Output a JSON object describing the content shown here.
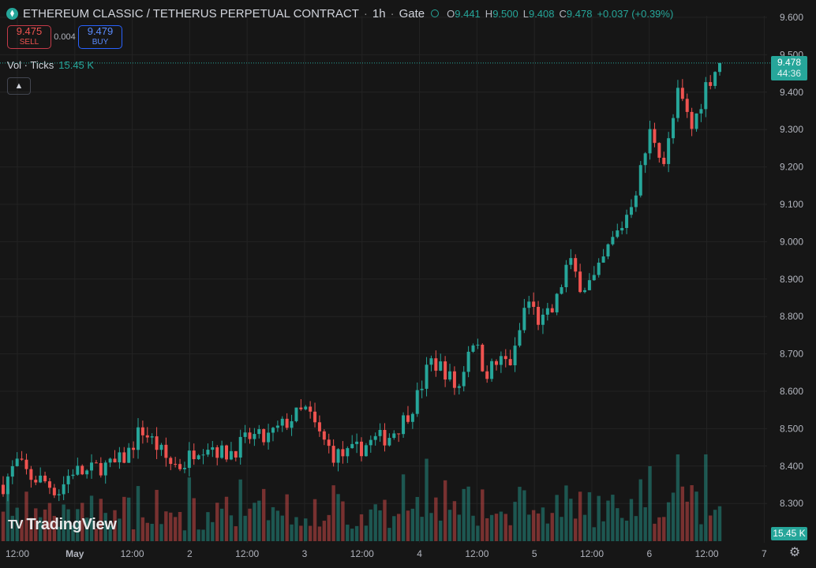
{
  "header": {
    "symbol": "ETHEREUM CLASSIC / TETHERUS PERPETUAL CONTRACT",
    "interval": "1h",
    "exchange": "Gate",
    "ohlc": {
      "o_label": "O",
      "o": "9.441",
      "h_label": "H",
      "h": "9.500",
      "l_label": "L",
      "l": "9.408",
      "c_label": "C",
      "c": "9.478",
      "change": "+0.037 (+0.39%)"
    }
  },
  "trade": {
    "sell_price": "9.475",
    "sell_label": "SELL",
    "spread": "0.004",
    "buy_price": "9.479",
    "buy_label": "BUY"
  },
  "volume_legend": {
    "label": "Vol · Ticks",
    "value": "15.45 K"
  },
  "collapse_icon": "chevron-up-icon",
  "branding": {
    "logo_text": "TradingView",
    "logo_mark": "TV"
  },
  "price_badge": {
    "price": "9.478",
    "countdown": "44:36"
  },
  "volume_badge": "15.45 K",
  "settings_icon": "gear-icon",
  "colors": {
    "up": "#26a69a",
    "down": "#ef5350",
    "background": "#161616",
    "grid": "#232323"
  },
  "chart_data": {
    "type": "candlestick",
    "title": "",
    "y_ticks": [
      "9.600",
      "9.500",
      "9.400",
      "9.300",
      "9.200",
      "9.100",
      "9.000",
      "8.900",
      "8.800",
      "8.700",
      "8.600",
      "8.500",
      "8.400",
      "8.300"
    ],
    "x_ticks": [
      "12:00",
      "May",
      "12:00",
      "2",
      "12:00",
      "3",
      "12:00",
      "4",
      "12:00",
      "5",
      "12:00",
      "6",
      "12:00",
      "7"
    ],
    "ylim": [
      8.24,
      9.62
    ],
    "grid": true,
    "current_price": 9.478,
    "series": [
      {
        "start": 8.35,
        "waypoints": [
          8.35,
          8.41,
          8.37,
          8.36,
          8.33,
          8.39,
          8.38,
          8.4,
          8.4,
          8.43,
          8.5,
          8.46,
          8.41,
          8.4,
          8.45,
          8.46,
          8.43,
          8.45,
          8.48,
          8.47,
          8.5,
          8.53,
          8.55,
          8.48,
          8.43,
          8.43,
          8.45,
          8.47,
          8.48,
          8.52,
          8.58,
          8.68,
          8.66,
          8.6,
          8.75,
          8.65,
          8.68,
          8.68,
          8.85,
          8.78,
          8.82,
          8.95,
          8.88,
          8.9,
          8.99,
          9.05,
          9.15,
          9.3,
          9.21,
          9.4,
          9.3,
          9.42,
          9.478
        ]
      }
    ]
  }
}
